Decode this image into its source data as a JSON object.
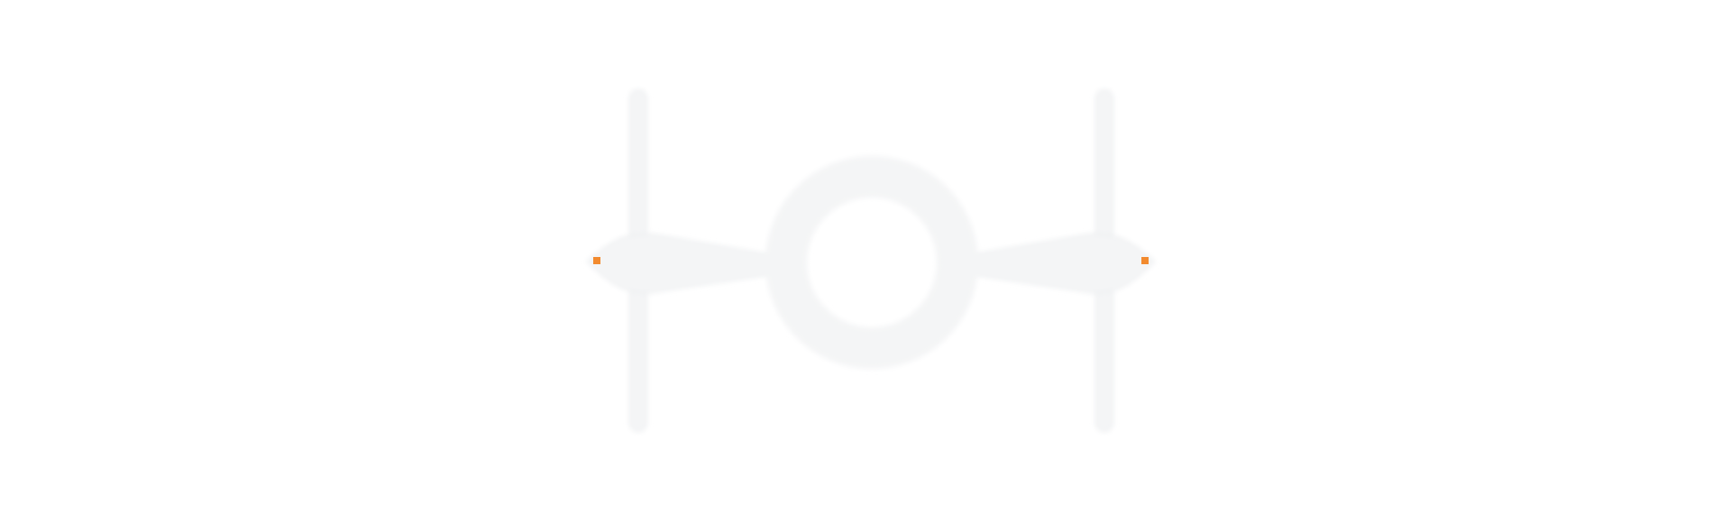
{
  "canvas": {
    "background": "#ffffff"
  },
  "symbol": {
    "icon": "ring-with-arms-icon",
    "fill_color": "#f4f5f6",
    "edge_color": "#eceef0",
    "marker_color": "#f28a2e",
    "markers": [
      "left",
      "right"
    ]
  }
}
